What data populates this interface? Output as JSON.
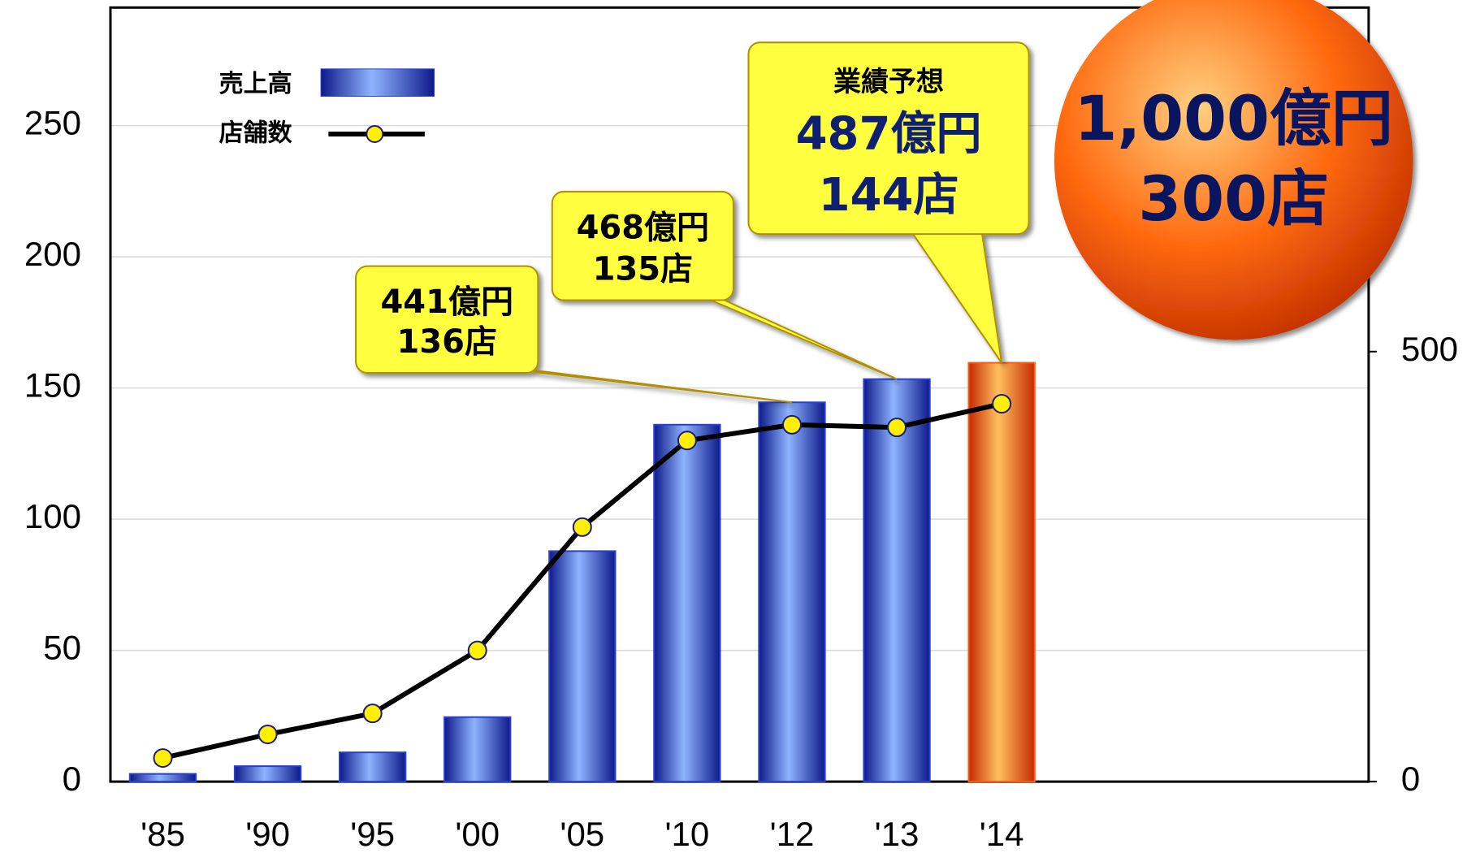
{
  "chart_data": {
    "type": "bar_line",
    "categories": [
      "'85",
      "'90",
      "'95",
      "'00",
      "'05",
      "'10",
      "'12",
      "'13",
      "'14"
    ],
    "series": [
      {
        "name": "売上高",
        "type": "bar",
        "axis": "y2",
        "color": "#2a3fd6",
        "colors": [
          "#2a3fd6",
          "#2a3fd6",
          "#2a3fd6",
          "#2a3fd6",
          "#2a3fd6",
          "#2a3fd6",
          "#2a3fd6",
          "#2a3fd6",
          "#ff5a10"
        ],
        "values": [
          9,
          18,
          34,
          75,
          268,
          415,
          441,
          468,
          487
        ],
        "value_labels": [
          null,
          null,
          null,
          null,
          null,
          null,
          "441億円",
          "468億円",
          "487億円"
        ]
      },
      {
        "name": "店舗数",
        "type": "line",
        "color": "#000000",
        "marker_color": "#ffef00",
        "values": [
          9,
          18,
          26,
          50,
          97,
          130,
          136,
          135,
          144
        ],
        "value_labels": [
          null,
          null,
          null,
          null,
          null,
          null,
          "136店",
          "135店",
          "144店"
        ]
      }
    ],
    "ylim": [
      0,
      295
    ],
    "yticks": [
      0,
      50,
      100,
      150,
      200,
      250
    ],
    "y2lim": [
      0,
      900
    ],
    "y2ticks": [
      0,
      500
    ],
    "grid": true,
    "annotations": {
      "forecast_title": "業績予想",
      "target_sales": "1,000億円",
      "target_stores": "300店"
    }
  }
}
